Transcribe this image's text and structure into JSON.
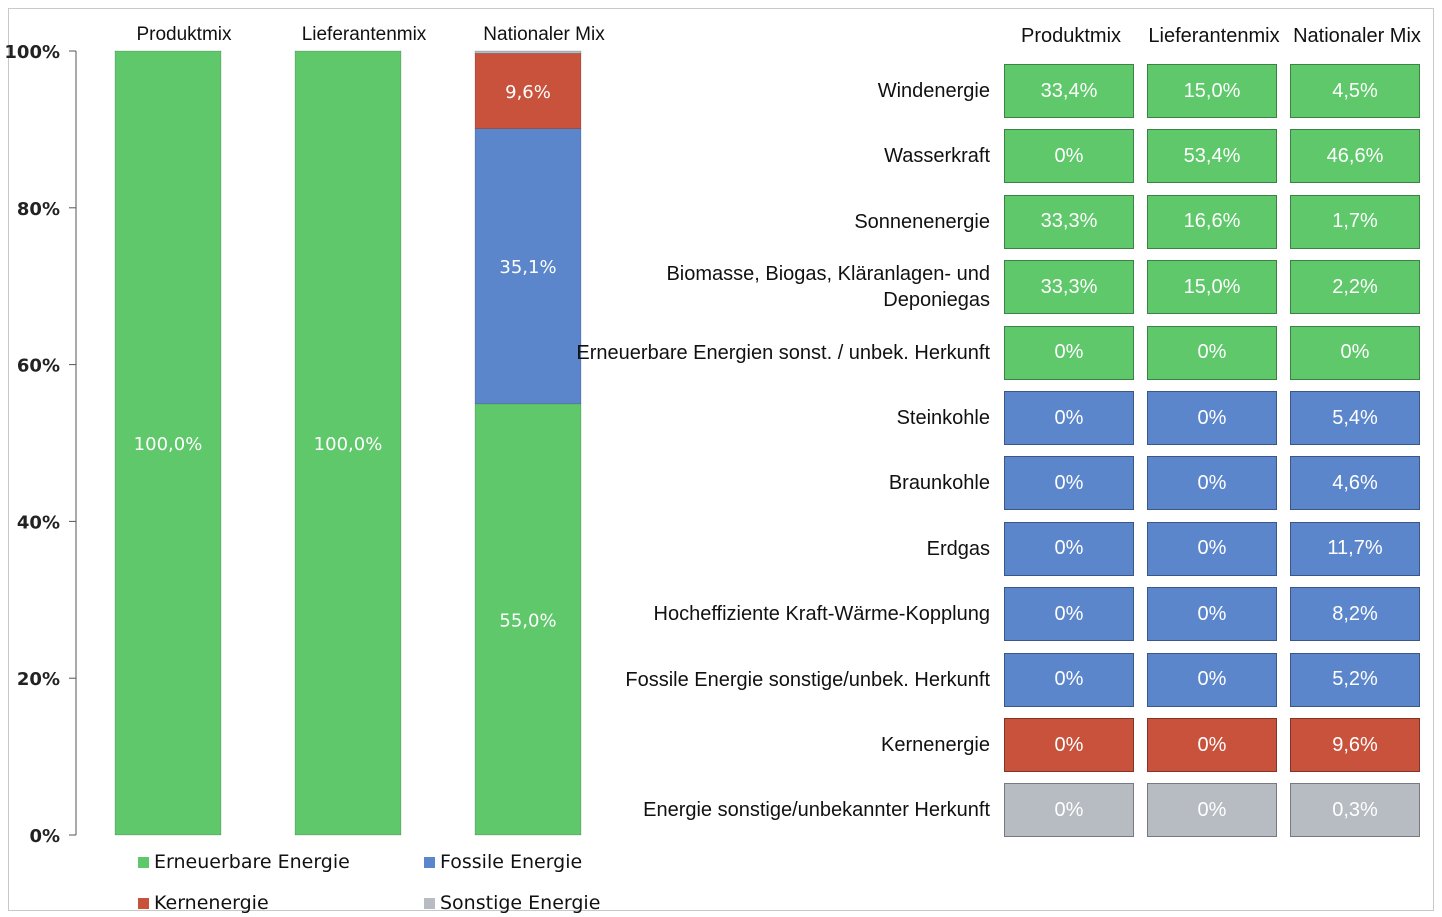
{
  "chart_data": [
    {
      "type": "bar",
      "stacked": true,
      "categories": [
        "Produktmix",
        "Lieferantenmix",
        "Nationaler Mix"
      ],
      "ylim": [
        0,
        100
      ],
      "y_ticks": [
        "0%",
        "20%",
        "40%",
        "60%",
        "80%",
        "100%"
      ],
      "series": [
        {
          "name": "Erneuerbare Energie",
          "color": "#5ec86a",
          "values": [
            100.0,
            100.0,
            55.0
          ],
          "labels": [
            "100,0%",
            "100,0%",
            "55,0%"
          ]
        },
        {
          "name": "Fossile Energie",
          "color": "#5b86cc",
          "values": [
            0,
            0,
            35.1
          ],
          "labels": [
            "",
            "",
            "35,1%"
          ]
        },
        {
          "name": "Kernenergie",
          "color": "#c8523c",
          "values": [
            0,
            0,
            9.6
          ],
          "labels": [
            "",
            "",
            "9,6%"
          ]
        },
        {
          "name": "Sonstige Energie",
          "color": "#b7bcc2",
          "values": [
            0,
            0,
            0.3
          ],
          "labels": [
            "",
            "",
            ""
          ]
        }
      ],
      "legend_position": "bottom"
    },
    {
      "type": "table",
      "columns": [
        "Produktmix",
        "Lieferantenmix",
        "Nationaler Mix"
      ],
      "rows": [
        {
          "label": "Windenergie",
          "group": "renewable",
          "values": [
            "33,4%",
            "15,0%",
            "4,5%"
          ]
        },
        {
          "label": "Wasserkraft",
          "group": "renewable",
          "values": [
            "0%",
            "53,4%",
            "46,6%"
          ]
        },
        {
          "label": "Sonnenenergie",
          "group": "renewable",
          "values": [
            "33,3%",
            "16,6%",
            "1,7%"
          ]
        },
        {
          "label": "Biomasse, Biogas, Kläranlagen- und Deponiegas",
          "label_lines": [
            "Biomasse, Biogas, Kläranlagen- und",
            "Deponiegas"
          ],
          "group": "renewable",
          "values": [
            "33,3%",
            "15,0%",
            "2,2%"
          ]
        },
        {
          "label": "Erneuerbare Energien sonst. / unbek. Herkunft",
          "group": "renewable",
          "values": [
            "0%",
            "0%",
            "0%"
          ]
        },
        {
          "label": "Steinkohle",
          "group": "fossil",
          "values": [
            "0%",
            "0%",
            "5,4%"
          ]
        },
        {
          "label": "Braunkohle",
          "group": "fossil",
          "values": [
            "0%",
            "0%",
            "4,6%"
          ]
        },
        {
          "label": "Erdgas",
          "group": "fossil",
          "values": [
            "0%",
            "0%",
            "11,7%"
          ]
        },
        {
          "label": "Hocheffiziente Kraft-Wärme-Kopplung",
          "group": "fossil",
          "values": [
            "0%",
            "0%",
            "8,2%"
          ]
        },
        {
          "label": "Fossile Energie sonstige/unbek. Herkunft",
          "group": "fossil",
          "values": [
            "0%",
            "0%",
            "5,2%"
          ]
        },
        {
          "label": "Kernenergie",
          "group": "nuclear",
          "values": [
            "0%",
            "0%",
            "9,6%"
          ]
        },
        {
          "label": "Energie sonstige/unbekannter Herkunft",
          "group": "other",
          "values": [
            "0%",
            "0%",
            "0,3%"
          ]
        }
      ],
      "group_colors": {
        "renewable": "#5ec86a",
        "fossil": "#5b86cc",
        "nuclear": "#c8523c",
        "other": "#b7bcc2"
      }
    }
  ]
}
